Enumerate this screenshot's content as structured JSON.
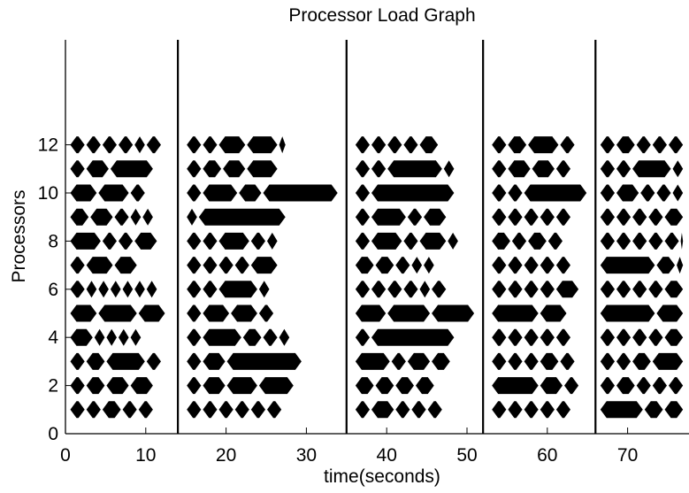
{
  "chart_data": {
    "type": "gantt",
    "title": "Processor Load Graph",
    "xlabel": "time(seconds)",
    "ylabel": "Processors",
    "xlim": [
      0,
      77
    ],
    "ylim": [
      0,
      13
    ],
    "xticks": [
      0,
      10,
      20,
      30,
      40,
      50,
      60,
      70
    ],
    "yticks": [
      0,
      2,
      4,
      6,
      8,
      10,
      12
    ],
    "grid": false,
    "colors": {
      "tasks": "#000000",
      "axes": "#000000",
      "background": "#ffffff"
    },
    "phase_boundaries": [
      14,
      35,
      52,
      66
    ],
    "series": [
      {
        "processor": 1,
        "tasks": [
          [
            0.5,
            2.5
          ],
          [
            2.5,
            4.5
          ],
          [
            4.5,
            7
          ],
          [
            7,
            9
          ],
          [
            9,
            11
          ],
          [
            15,
            17
          ],
          [
            17,
            19
          ],
          [
            19,
            21
          ],
          [
            21,
            23
          ],
          [
            23,
            25
          ],
          [
            25,
            27
          ],
          [
            36,
            38
          ],
          [
            38,
            41
          ],
          [
            41,
            43
          ],
          [
            43,
            45
          ],
          [
            45,
            47
          ],
          [
            53,
            55
          ],
          [
            55,
            57
          ],
          [
            57,
            59
          ],
          [
            59,
            61
          ],
          [
            61,
            63
          ],
          [
            66.5,
            72
          ],
          [
            72,
            74.5
          ],
          [
            74.5,
            77
          ]
        ]
      },
      {
        "processor": 2,
        "tasks": [
          [
            0.5,
            2.5
          ],
          [
            2.5,
            5
          ],
          [
            5,
            8
          ],
          [
            8,
            11
          ],
          [
            15,
            17
          ],
          [
            17,
            20
          ],
          [
            20,
            24
          ],
          [
            24,
            28.5
          ],
          [
            36,
            38.5
          ],
          [
            38.5,
            41
          ],
          [
            41,
            43.5
          ],
          [
            43.5,
            46
          ],
          [
            53,
            59
          ],
          [
            59,
            62
          ],
          [
            62,
            64
          ],
          [
            66.5,
            68.5
          ],
          [
            68.5,
            71
          ],
          [
            71,
            73
          ],
          [
            73,
            75
          ],
          [
            75,
            77
          ]
        ]
      },
      {
        "processor": 3,
        "tasks": [
          [
            0.5,
            2.5
          ],
          [
            2.5,
            5
          ],
          [
            5,
            10
          ],
          [
            10,
            12
          ],
          [
            15,
            17
          ],
          [
            17,
            20
          ],
          [
            20,
            29.5
          ],
          [
            36,
            40.5
          ],
          [
            40.5,
            42.5
          ],
          [
            42.5,
            45.5
          ],
          [
            45.5,
            48
          ],
          [
            53,
            55
          ],
          [
            55,
            57
          ],
          [
            57,
            59
          ],
          [
            59,
            61.5
          ],
          [
            61.5,
            63.5
          ],
          [
            66.5,
            68.5
          ],
          [
            68.5,
            70.5
          ],
          [
            70.5,
            73
          ],
          [
            73,
            77
          ]
        ]
      },
      {
        "processor": 4,
        "tasks": [
          [
            0.5,
            3.5
          ],
          [
            3.5,
            5
          ],
          [
            5,
            6.5
          ],
          [
            6.5,
            8
          ],
          [
            8,
            9.5
          ],
          [
            15,
            17
          ],
          [
            17,
            22
          ],
          [
            22,
            24.5
          ],
          [
            24.5,
            26.5
          ],
          [
            26.5,
            28
          ],
          [
            36,
            38
          ],
          [
            38,
            48.5
          ],
          [
            53,
            55
          ],
          [
            55,
            57
          ],
          [
            57,
            59
          ],
          [
            59,
            61
          ],
          [
            61,
            63
          ],
          [
            66.5,
            68.5
          ],
          [
            68.5,
            70.5
          ],
          [
            70.5,
            72.5
          ],
          [
            72.5,
            74.5
          ],
          [
            74.5,
            77
          ]
        ]
      },
      {
        "processor": 5,
        "tasks": [
          [
            0.5,
            4
          ],
          [
            4,
            9
          ],
          [
            9,
            12.5
          ],
          [
            15,
            17
          ],
          [
            17,
            20.5
          ],
          [
            20.5,
            24
          ],
          [
            24,
            26
          ],
          [
            36,
            40
          ],
          [
            40,
            45.5
          ],
          [
            45.5,
            51
          ],
          [
            53,
            59
          ],
          [
            59,
            62.5
          ],
          [
            66.5,
            73.5
          ],
          [
            73.5,
            77
          ]
        ]
      },
      {
        "processor": 6,
        "tasks": [
          [
            0.5,
            2.5
          ],
          [
            2.5,
            4
          ],
          [
            4,
            5.5
          ],
          [
            5.5,
            7
          ],
          [
            7,
            8.5
          ],
          [
            8.5,
            10
          ],
          [
            10,
            11.5
          ],
          [
            15,
            17
          ],
          [
            17,
            19
          ],
          [
            19,
            24
          ],
          [
            24,
            25.5
          ],
          [
            36,
            38
          ],
          [
            38,
            40
          ],
          [
            40,
            42
          ],
          [
            42,
            44
          ],
          [
            44,
            45.5
          ],
          [
            45.5,
            47.5
          ],
          [
            53,
            55
          ],
          [
            55,
            57
          ],
          [
            57,
            59
          ],
          [
            59,
            61
          ],
          [
            61,
            64
          ],
          [
            66.5,
            68.5
          ],
          [
            68.5,
            70.5
          ],
          [
            70.5,
            72.5
          ],
          [
            72.5,
            74.5
          ],
          [
            74.5,
            77
          ]
        ]
      },
      {
        "processor": 7,
        "tasks": [
          [
            0.5,
            2.5
          ],
          [
            2.5,
            6
          ],
          [
            6,
            9
          ],
          [
            15,
            17
          ],
          [
            17,
            19
          ],
          [
            19,
            21
          ],
          [
            21,
            23
          ],
          [
            23,
            26.5
          ],
          [
            36,
            38.5
          ],
          [
            38.5,
            41
          ],
          [
            41,
            43
          ],
          [
            43,
            44.5
          ],
          [
            44.5,
            46
          ],
          [
            53,
            55
          ],
          [
            55,
            57
          ],
          [
            57,
            59
          ],
          [
            59,
            61
          ],
          [
            61,
            63
          ],
          [
            66.5,
            73.5
          ],
          [
            73.5,
            76
          ],
          [
            76,
            77
          ]
        ]
      },
      {
        "processor": 8,
        "tasks": [
          [
            0.5,
            4.5
          ],
          [
            4.5,
            6.5
          ],
          [
            6.5,
            8.5
          ],
          [
            8.5,
            11.5
          ],
          [
            15,
            17
          ],
          [
            17,
            19
          ],
          [
            19,
            23
          ],
          [
            23,
            25
          ],
          [
            25,
            26.5
          ],
          [
            36,
            38
          ],
          [
            38,
            42
          ],
          [
            42,
            44
          ],
          [
            44,
            47.5
          ],
          [
            47.5,
            49
          ],
          [
            53,
            55.5
          ],
          [
            55.5,
            57.5
          ],
          [
            57.5,
            60
          ],
          [
            60,
            62
          ],
          [
            66.5,
            68.5
          ],
          [
            68.5,
            70.5
          ],
          [
            70.5,
            72.5
          ],
          [
            72.5,
            74.5
          ],
          [
            74.5,
            76.5
          ],
          [
            76.5,
            77
          ]
        ]
      },
      {
        "processor": 9,
        "tasks": [
          [
            0.5,
            3
          ],
          [
            3,
            6
          ],
          [
            6,
            8
          ],
          [
            8,
            9.5
          ],
          [
            9.5,
            11
          ],
          [
            15,
            16.5
          ],
          [
            16.5,
            27.5
          ],
          [
            36,
            38
          ],
          [
            38,
            42.5
          ],
          [
            42.5,
            44.5
          ],
          [
            44.5,
            47.5
          ],
          [
            53,
            55
          ],
          [
            55,
            57
          ],
          [
            57,
            59
          ],
          [
            59,
            61
          ],
          [
            61,
            63
          ],
          [
            66.5,
            68.5
          ],
          [
            68.5,
            70.5
          ],
          [
            70.5,
            72.5
          ],
          [
            72.5,
            74.5
          ],
          [
            74.5,
            77
          ]
        ]
      },
      {
        "processor": 10,
        "tasks": [
          [
            0.5,
            4
          ],
          [
            4,
            8
          ],
          [
            8,
            10
          ],
          [
            15,
            17
          ],
          [
            17,
            21.5
          ],
          [
            21.5,
            24.5
          ],
          [
            24.5,
            34
          ],
          [
            36,
            38
          ],
          [
            38,
            48.5
          ],
          [
            53,
            55
          ],
          [
            55,
            57
          ],
          [
            57,
            65
          ],
          [
            66.5,
            68.5
          ],
          [
            68.5,
            71.5
          ],
          [
            71.5,
            73.5
          ],
          [
            73.5,
            75.5
          ],
          [
            75.5,
            77
          ]
        ]
      },
      {
        "processor": 11,
        "tasks": [
          [
            0.5,
            2.5
          ],
          [
            2.5,
            5.5
          ],
          [
            5.5,
            11
          ],
          [
            15,
            17
          ],
          [
            17,
            19.5
          ],
          [
            19.5,
            22.5
          ],
          [
            22.5,
            26.5
          ],
          [
            36,
            38
          ],
          [
            38,
            40
          ],
          [
            40,
            47
          ],
          [
            47,
            48.5
          ],
          [
            53,
            55
          ],
          [
            55,
            58
          ],
          [
            58,
            61
          ],
          [
            61,
            63
          ],
          [
            66.5,
            68.5
          ],
          [
            68.5,
            70.5
          ],
          [
            70.5,
            75.5
          ],
          [
            75.5,
            77
          ]
        ]
      },
      {
        "processor": 12,
        "tasks": [
          [
            0.5,
            2.5
          ],
          [
            2.5,
            4.5
          ],
          [
            4.5,
            6.5
          ],
          [
            6.5,
            8.5
          ],
          [
            8.5,
            10
          ],
          [
            10,
            12
          ],
          [
            15,
            17
          ],
          [
            17,
            19
          ],
          [
            19,
            22.5
          ],
          [
            22.5,
            26.5
          ],
          [
            26.5,
            27.5
          ],
          [
            36,
            38
          ],
          [
            38,
            40
          ],
          [
            40,
            42
          ],
          [
            42,
            44
          ],
          [
            44,
            46.5
          ],
          [
            53,
            55
          ],
          [
            55,
            57.5
          ],
          [
            57.5,
            61.5
          ],
          [
            61.5,
            63.5
          ],
          [
            66.5,
            68.5
          ],
          [
            68.5,
            71
          ],
          [
            71,
            73
          ],
          [
            73,
            75
          ],
          [
            75,
            77
          ]
        ]
      }
    ]
  }
}
